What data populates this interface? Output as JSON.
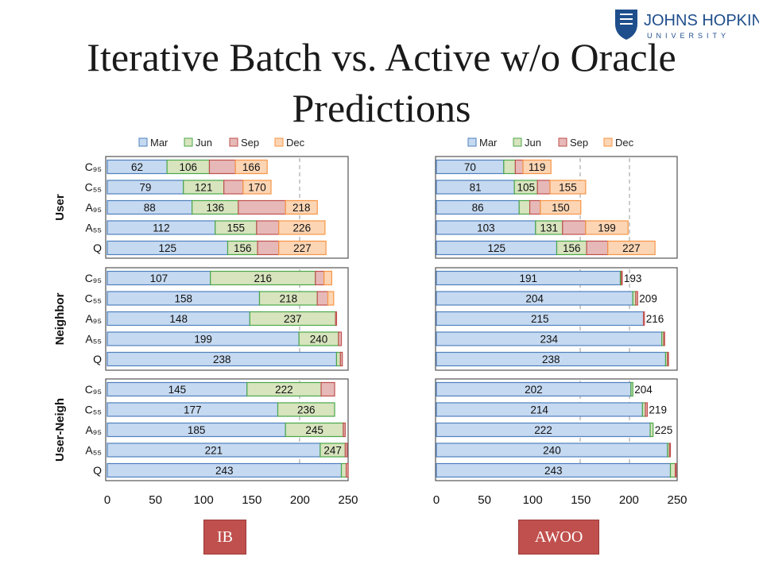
{
  "slide": {
    "title_line1": "Iterative Batch vs. Active w/o Oracle",
    "title_line2": "Predictions",
    "logo_text_main": "JOHNS HOPKINS",
    "logo_text_sub": "UNIVERSITY",
    "badge_left": "IB",
    "badge_right": "AWOO"
  },
  "colors": {
    "Mar": "#c5d9f1",
    "Mar_edge": "#4f81bd",
    "Jun": "#d7e4bd",
    "Jun_edge": "#4aa84a",
    "Sep": "#e6b9b8",
    "Sep_edge": "#c0504d",
    "Dec": "#fcd5b4",
    "Dec_edge": "#f79646"
  },
  "chart_data": [
    {
      "type": "bar",
      "subtype": "horizontal-stacked-cumulative",
      "title": "IB",
      "legend": [
        "Mar",
        "Jun",
        "Sep",
        "Dec"
      ],
      "legend_position": "top",
      "xlim": [
        0,
        250
      ],
      "x_ticks": [
        "0",
        "50",
        "100",
        "150",
        "200",
        "250"
      ],
      "groups": [
        {
          "name": "User",
          "rows": [
            {
              "label": "C95",
              "values": [
                62,
                106,
                133,
                166
              ],
              "labels": [
                "62",
                "106",
                "",
                "166"
              ]
            },
            {
              "label": "C55",
              "values": [
                79,
                121,
                141,
                170
              ],
              "labels": [
                "79",
                "121",
                "",
                "170"
              ]
            },
            {
              "label": "A95",
              "values": [
                88,
                136,
                185,
                218
              ],
              "labels": [
                "88",
                "136",
                "",
                "218"
              ]
            },
            {
              "label": "A55",
              "values": [
                112,
                155,
                178,
                226
              ],
              "labels": [
                "112",
                "155",
                "",
                "226"
              ]
            },
            {
              "label": "Q",
              "values": [
                125,
                156,
                178,
                227
              ],
              "labels": [
                "125",
                "156",
                "",
                "227"
              ]
            }
          ]
        },
        {
          "name": "Neighbor",
          "rows": [
            {
              "label": "C95",
              "values": [
                107,
                216,
                225,
                233
              ],
              "labels": [
                "107",
                "216",
                "",
                ""
              ]
            },
            {
              "label": "C55",
              "values": [
                158,
                218,
                229,
                235
              ],
              "labels": [
                "158",
                "218",
                "",
                ""
              ]
            },
            {
              "label": "A95",
              "values": [
                148,
                237,
                238,
                238
              ],
              "labels": [
                "148",
                "237",
                "",
                ""
              ]
            },
            {
              "label": "A55",
              "values": [
                199,
                240,
                243,
                243
              ],
              "labels": [
                "199",
                "240",
                "",
                ""
              ]
            },
            {
              "label": "Q",
              "values": [
                238,
                242,
                244,
                244
              ],
              "labels": [
                "238",
                "",
                "",
                ""
              ]
            }
          ]
        },
        {
          "name": "User-Neigh",
          "rows": [
            {
              "label": "C95",
              "values": [
                145,
                222,
                236,
                236
              ],
              "labels": [
                "145",
                "222",
                "",
                ""
              ]
            },
            {
              "label": "C55",
              "values": [
                177,
                236,
                236,
                236
              ],
              "labels": [
                "177",
                "236",
                "",
                ""
              ]
            },
            {
              "label": "A95",
              "values": [
                185,
                245,
                247,
                247
              ],
              "labels": [
                "185",
                "245",
                "",
                ""
              ]
            },
            {
              "label": "A55",
              "values": [
                221,
                247,
                249,
                249
              ],
              "labels": [
                "221",
                "247",
                "",
                ""
              ]
            },
            {
              "label": "Q",
              "values": [
                243,
                248,
                250,
                250
              ],
              "labels": [
                "243",
                "",
                "",
                ""
              ]
            }
          ]
        }
      ]
    },
    {
      "type": "bar",
      "subtype": "horizontal-stacked-cumulative",
      "title": "AWOO",
      "legend": [
        "Mar",
        "Jun",
        "Sep",
        "Dec"
      ],
      "legend_position": "top",
      "xlim": [
        0,
        250
      ],
      "x_ticks": [
        "0",
        "50",
        "100",
        "150",
        "200",
        "250"
      ],
      "groups": [
        {
          "name": "User",
          "rows": [
            {
              "label": "C95",
              "values": [
                70,
                82,
                90,
                119
              ],
              "labels": [
                "70",
                "",
                "",
                "119"
              ]
            },
            {
              "label": "C55",
              "values": [
                81,
                105,
                118,
                155
              ],
              "labels": [
                "81",
                "105",
                "",
                "155"
              ]
            },
            {
              "label": "A95",
              "values": [
                86,
                97,
                108,
                150
              ],
              "labels": [
                "86",
                "",
                "",
                "150"
              ]
            },
            {
              "label": "A55",
              "values": [
                103,
                131,
                155,
                199
              ],
              "labels": [
                "103",
                "131",
                "",
                "199"
              ]
            },
            {
              "label": "Q",
              "values": [
                125,
                156,
                178,
                227
              ],
              "labels": [
                "125",
                "156",
                "",
                "227"
              ]
            }
          ]
        },
        {
          "name": "Neighbor",
          "rows": [
            {
              "label": "C95",
              "values": [
                191,
                192,
                193,
                193
              ],
              "labels": [
                "191",
                "",
                "",
                "193"
              ]
            },
            {
              "label": "C55",
              "values": [
                204,
                207,
                209,
                209
              ],
              "labels": [
                "204",
                "",
                "",
                "209"
              ]
            },
            {
              "label": "A95",
              "values": [
                215,
                215,
                216,
                216
              ],
              "labels": [
                "215",
                "",
                "",
                "216"
              ]
            },
            {
              "label": "A55",
              "values": [
                234,
                236,
                237,
                237
              ],
              "labels": [
                "234",
                "",
                "",
                ""
              ]
            },
            {
              "label": "Q",
              "values": [
                238,
                240,
                241,
                241
              ],
              "labels": [
                "238",
                "",
                "",
                ""
              ]
            }
          ]
        },
        {
          "name": "User-Neigh",
          "rows": [
            {
              "label": "C95",
              "values": [
                202,
                204,
                204,
                204
              ],
              "labels": [
                "202",
                "",
                "",
                "204"
              ]
            },
            {
              "label": "C55",
              "values": [
                214,
                217,
                219,
                219
              ],
              "labels": [
                "214",
                "",
                "",
                "219"
              ]
            },
            {
              "label": "A95",
              "values": [
                222,
                225,
                225,
                225
              ],
              "labels": [
                "222",
                "",
                "",
                "225"
              ]
            },
            {
              "label": "A55",
              "values": [
                240,
                242,
                243,
                243
              ],
              "labels": [
                "240",
                "",
                "",
                ""
              ]
            },
            {
              "label": "Q",
              "values": [
                243,
                248,
                249,
                249
              ],
              "labels": [
                "243",
                "",
                "",
                ""
              ]
            }
          ]
        }
      ]
    }
  ]
}
